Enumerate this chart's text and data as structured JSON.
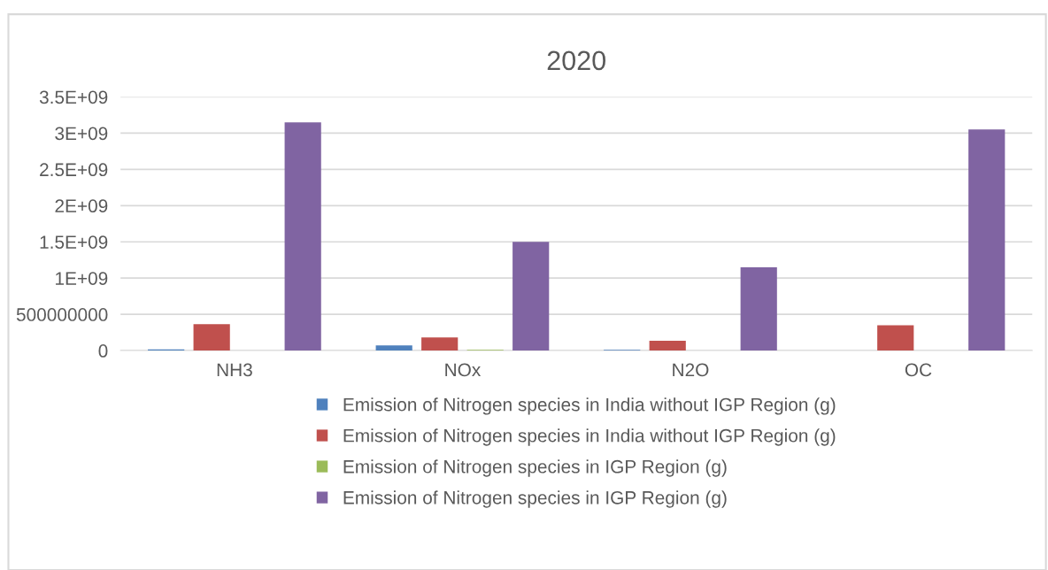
{
  "chart_data": {
    "type": "bar",
    "title": "2020",
    "categories": [
      "NH3",
      "NOx",
      "N2O",
      "OC"
    ],
    "series": [
      {
        "name": "Emission of Nitrogen species in India without IGP Region (g)",
        "color": "#4f81bd",
        "values": [
          15000000,
          70000000,
          10000000,
          0
        ]
      },
      {
        "name": "Emission of Nitrogen species in India without IGP Region (g)",
        "color": "#c0504d",
        "values": [
          365000000,
          180000000,
          135000000,
          350000000
        ]
      },
      {
        "name": "Emission of Nitrogen species in IGP Region (g)",
        "color": "#9bbb59",
        "values": [
          0,
          10000000,
          0,
          0
        ]
      },
      {
        "name": "Emission of Nitrogen species in IGP Region (g)",
        "color": "#8064a2",
        "values": [
          3150000000,
          1500000000,
          1150000000,
          3050000000
        ]
      }
    ],
    "ylim": [
      0,
      3500000000
    ],
    "yticks": [
      0,
      {
        "value": 500000000,
        "label": "500000000"
      },
      {
        "value": 1000000000,
        "label": "1E+09"
      },
      {
        "value": 1500000000,
        "label": "1.5E+09"
      },
      {
        "value": 2000000000,
        "label": "2E+09"
      },
      {
        "value": 2500000000,
        "label": "2.5E+09"
      },
      {
        "value": 3000000000,
        "label": "3E+09"
      },
      {
        "value": 3500000000,
        "label": "3.5E+09"
      }
    ],
    "grid": "y",
    "legend": "bottom"
  }
}
